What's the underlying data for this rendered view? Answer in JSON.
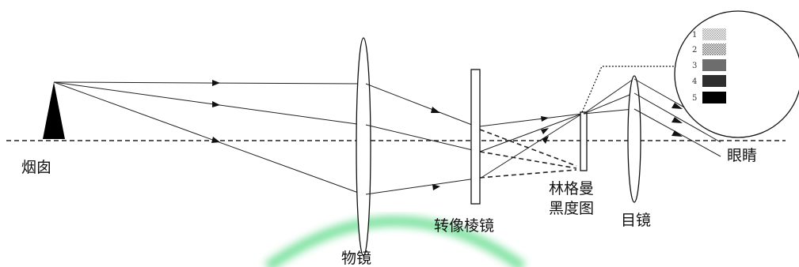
{
  "labels": {
    "chimney": "烟囱",
    "objective": "物镜",
    "relay_prism": "转像棱镜",
    "ringelmann_line1": "林格曼",
    "ringelmann_line2": "黑度图",
    "eyepiece": "目镜",
    "eye": "眼睛"
  },
  "ringelmann_grades": [
    {
      "label": "1",
      "level": 0.2
    },
    {
      "label": "2",
      "level": 0.4
    },
    {
      "label": "3",
      "level": 0.6
    },
    {
      "label": "4",
      "level": 0.8
    },
    {
      "label": "5",
      "level": 1.0
    }
  ],
  "colors": {
    "line": "#222222",
    "glow": "#7ee2a0"
  }
}
